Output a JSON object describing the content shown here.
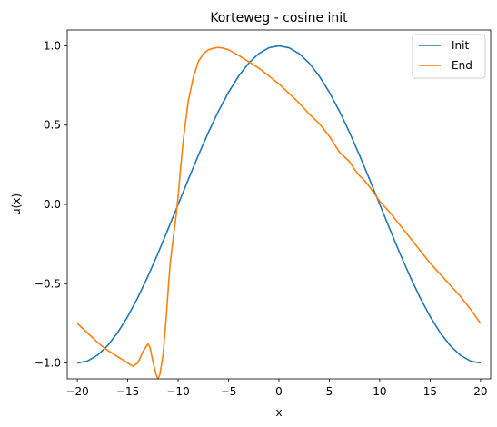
{
  "chart_data": {
    "type": "line",
    "title": "Korteweg - cosine init",
    "xlabel": "x",
    "ylabel": "u(x)",
    "xlim": [
      -21,
      21
    ],
    "ylim": [
      -1.1,
      1.1
    ],
    "xticks": [
      -20,
      -15,
      -10,
      -5,
      0,
      5,
      10,
      15,
      20
    ],
    "xtick_labels": [
      "−20",
      "−15",
      "−10",
      "−5",
      "0",
      "5",
      "10",
      "15",
      "20"
    ],
    "yticks": [
      -1.0,
      -0.5,
      0.0,
      0.5,
      1.0
    ],
    "ytick_labels": [
      "−1.0",
      "−0.5",
      "0.0",
      "0.5",
      "1.0"
    ],
    "grid": false,
    "legend": "top-right",
    "series": [
      {
        "name": "Init",
        "color": "#1f77b4",
        "x": [
          -20,
          -19,
          -18,
          -17,
          -16,
          -15,
          -14,
          -13,
          -12,
          -11,
          -10,
          -9,
          -8,
          -7,
          -6,
          -5,
          -4,
          -3,
          -2,
          -1,
          0,
          1,
          2,
          3,
          4,
          5,
          6,
          7,
          8,
          9,
          10,
          11,
          12,
          13,
          14,
          15,
          16,
          17,
          18,
          19,
          20
        ],
        "y": [
          -1.0,
          -0.988,
          -0.951,
          -0.891,
          -0.809,
          -0.707,
          -0.588,
          -0.454,
          -0.309,
          -0.156,
          0.0,
          0.156,
          0.309,
          0.454,
          0.588,
          0.707,
          0.809,
          0.891,
          0.951,
          0.988,
          1.0,
          0.988,
          0.951,
          0.891,
          0.809,
          0.707,
          0.588,
          0.454,
          0.309,
          0.156,
          0.0,
          -0.156,
          -0.309,
          -0.454,
          -0.588,
          -0.707,
          -0.809,
          -0.891,
          -0.951,
          -0.988,
          -1.0
        ]
      },
      {
        "name": "End",
        "color": "#ff7f0e",
        "x": [
          -20,
          -19,
          -18,
          -17,
          -16,
          -15,
          -14.5,
          -14,
          -13.5,
          -13,
          -12.8,
          -12.5,
          -12.2,
          -12,
          -11.8,
          -11.5,
          -11.2,
          -11,
          -10.8,
          -10.5,
          -10.2,
          -10,
          -9.8,
          -9.5,
          -9,
          -8.5,
          -8,
          -7.5,
          -7,
          -6.5,
          -6,
          -5.5,
          -5,
          -4,
          -3,
          -2,
          -1,
          0,
          1,
          2,
          3,
          4,
          5,
          5.5,
          6,
          6.5,
          7,
          7.5,
          8,
          8.5,
          9,
          10,
          11,
          12,
          13,
          14,
          15,
          16,
          17,
          18,
          19,
          20
        ],
        "y": [
          -0.75,
          -0.81,
          -0.87,
          -0.92,
          -0.96,
          -1.0,
          -1.02,
          -1.0,
          -0.93,
          -0.88,
          -0.9,
          -0.99,
          -1.07,
          -1.1,
          -1.07,
          -0.95,
          -0.73,
          -0.55,
          -0.38,
          -0.22,
          -0.07,
          0.05,
          0.2,
          0.4,
          0.65,
          0.8,
          0.9,
          0.95,
          0.975,
          0.985,
          0.99,
          0.985,
          0.975,
          0.94,
          0.9,
          0.86,
          0.81,
          0.76,
          0.7,
          0.64,
          0.57,
          0.51,
          0.43,
          0.38,
          0.33,
          0.3,
          0.27,
          0.22,
          0.18,
          0.15,
          0.11,
          0.02,
          -0.05,
          -0.13,
          -0.21,
          -0.29,
          -0.37,
          -0.44,
          -0.51,
          -0.58,
          -0.66,
          -0.75
        ]
      }
    ]
  }
}
